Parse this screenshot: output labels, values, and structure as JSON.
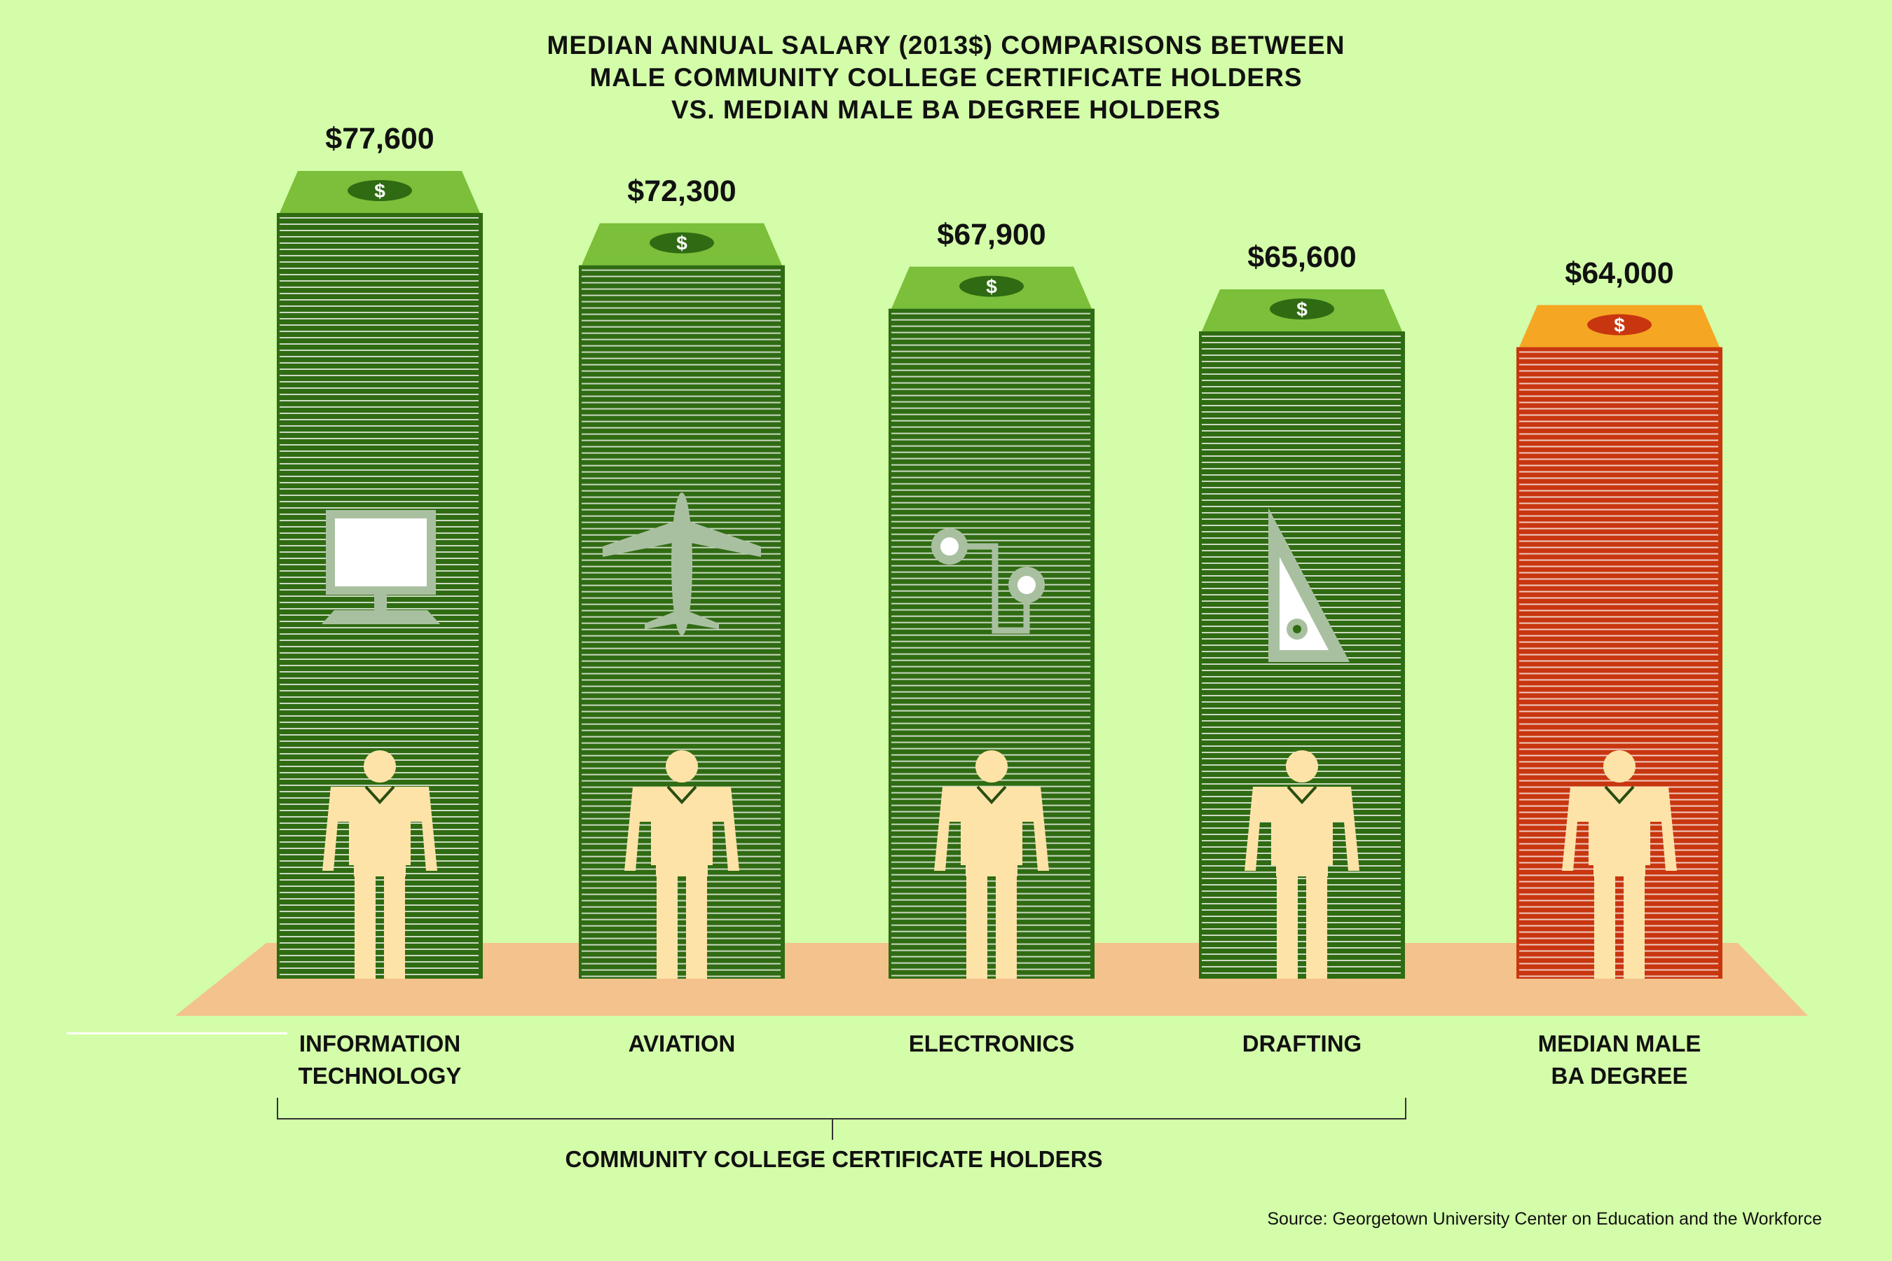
{
  "title_lines": [
    "MEDIAN ANNUAL SALARY (2013$) COMPARISONS BETWEEN",
    "MALE COMMUNITY COLLEGE CERTIFICATE HOLDERS",
    "VS. MEDIAN MALE BA DEGREE HOLDERS"
  ],
  "group_label": "COMMUNITY COLLEGE CERTIFICATE HOLDERS",
  "source": "Source: Georgetown University Center on Education and the Workforce",
  "colors": {
    "background": "#d3fda9",
    "certificate_bar": "#2f6b12",
    "certificate_top": "#7bbf3a",
    "ba_bar": "#c8360f",
    "ba_top": "#f5a623",
    "floor": "#f3c28d",
    "figure": "#fde3a7"
  },
  "chart_data": {
    "type": "bar",
    "categories": [
      "INFORMATION\nTECHNOLOGY",
      "AVIATION",
      "ELECTRONICS",
      "DRAFTING",
      "MEDIAN MALE\nBA DEGREE"
    ],
    "values": [
      77600,
      72300,
      67900,
      65600,
      64000
    ],
    "value_labels": [
      "$77,600",
      "$72,300",
      "$67,900",
      "$65,600",
      "$64,000"
    ],
    "icons": [
      "computer-monitor-icon",
      "airplane-icon",
      "circuit-icon",
      "drafting-triangle-icon",
      "none"
    ],
    "bar_top_symbol": "$",
    "groups": [
      {
        "label": "COMMUNITY COLLEGE CERTIFICATE HOLDERS",
        "members": [
          0,
          1,
          2,
          3
        ]
      }
    ],
    "highlight": [
      false,
      false,
      false,
      false,
      true
    ],
    "ylim": [
      0,
      77600
    ],
    "grid": false,
    "legend": "none"
  }
}
